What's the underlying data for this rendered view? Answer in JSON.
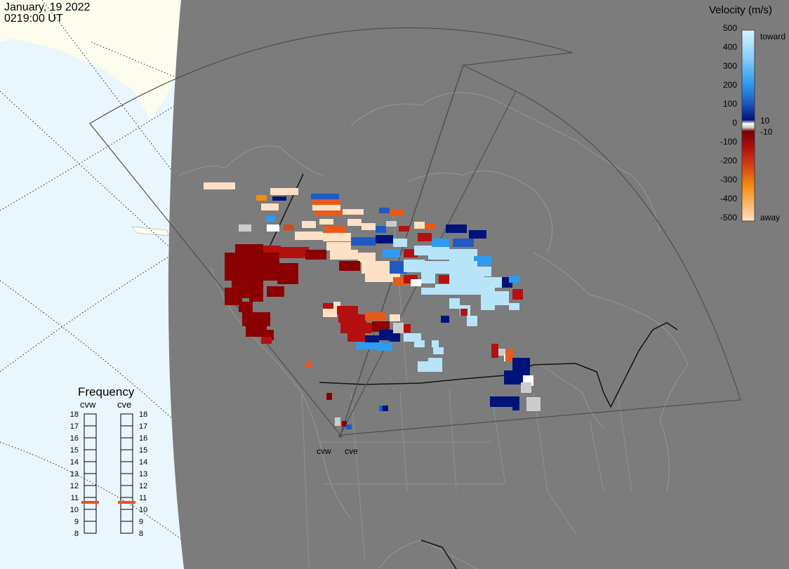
{
  "timestamp": {
    "date": "January, 19 2022",
    "time": "0219:00 UT"
  },
  "colors": {
    "ocean": "#eaf6fd",
    "land_unlit": "#fdfdee",
    "night_shade": "#7c7c7c",
    "fov_outline": "#505050",
    "coast": "#979797",
    "border": "#111111",
    "marker": "#e8541e"
  },
  "velocity_legend": {
    "title": "Velocity (m/s)",
    "ticks": [
      "500",
      "400",
      "300",
      "200",
      "100",
      "0",
      "-100",
      "-200",
      "-300",
      "-400",
      "-500"
    ],
    "side_labels": {
      "toward": "toward",
      "plus10": "10",
      "minus10": "-10",
      "away": "away"
    }
  },
  "frequency_panel": {
    "title": "Frequency",
    "radars": [
      {
        "name": "cvw",
        "freq_mhz": 11
      },
      {
        "name": "cve",
        "freq_mhz": 11
      }
    ],
    "scale": [
      "18",
      "17",
      "16",
      "15",
      "14",
      "13",
      "12",
      "11",
      "10",
      "9",
      "8"
    ]
  },
  "sites": [
    "cvw",
    "cve"
  ],
  "cells": [
    [
      290,
      260,
      45,
      10,
      "#fee0c4"
    ],
    [
      385,
      268,
      20,
      10,
      "#fee0c4"
    ],
    [
      405,
      268,
      20,
      10,
      "#fee0c4"
    ],
    [
      365,
      278,
      15,
      8,
      "#f78d10"
    ],
    [
      388,
      280,
      20,
      6,
      "#00137a"
    ],
    [
      372,
      290,
      25,
      10,
      "#fee0c4"
    ],
    [
      378,
      308,
      15,
      8,
      "#2e9bf0"
    ],
    [
      340,
      320,
      18,
      10,
      "#cccccc"
    ],
    [
      380,
      320,
      18,
      10,
      "#ffffff"
    ],
    [
      404,
      320,
      14,
      8,
      "#d84812"
    ],
    [
      443,
      276,
      40,
      8,
      "#1f5ac4"
    ],
    [
      445,
      284,
      40,
      8,
      "#e95a1a"
    ],
    [
      445,
      292,
      40,
      8,
      "#fee0c4"
    ],
    [
      448,
      300,
      40,
      8,
      "#e95a1a"
    ],
    [
      488,
      298,
      30,
      8,
      "#fee0c4"
    ],
    [
      430,
      315,
      20,
      10,
      "#fee0c4"
    ],
    [
      455,
      312,
      20,
      8,
      "#fee0c4"
    ],
    [
      462,
      322,
      30,
      10,
      "#e95a1a"
    ],
    [
      495,
      312,
      20,
      10,
      "#fee0c4"
    ],
    [
      515,
      318,
      20,
      10,
      "#fee0c4"
    ],
    [
      535,
      322,
      15,
      10,
      "#1f5ac4"
    ],
    [
      540,
      296,
      15,
      8,
      "#1f5ac4"
    ],
    [
      555,
      298,
      20,
      10,
      "#e95a1a"
    ],
    [
      550,
      315,
      15,
      8,
      "#cccccc"
    ],
    [
      568,
      322,
      15,
      8,
      "#b41010"
    ],
    [
      420,
      330,
      40,
      12,
      "#fee0c4"
    ],
    [
      460,
      332,
      40,
      12,
      "#fee0c4"
    ],
    [
      465,
      345,
      35,
      12,
      "#fee0c4"
    ],
    [
      500,
      338,
      35,
      12,
      "#1f5ac4"
    ],
    [
      535,
      335,
      25,
      12,
      "#00137a"
    ],
    [
      560,
      340,
      20,
      12,
      "#b8e4fa"
    ],
    [
      545,
      355,
      25,
      12,
      "#2e9bf0"
    ],
    [
      575,
      355,
      20,
      12,
      "#b41010"
    ],
    [
      335,
      348,
      40,
      12,
      "#8b0000"
    ],
    [
      375,
      350,
      25,
      12,
      "#b41010"
    ],
    [
      390,
      352,
      50,
      16,
      "#b41010"
    ],
    [
      435,
      356,
      30,
      14,
      "#8b0000"
    ],
    [
      470,
      356,
      40,
      14,
      "#fee0c4"
    ],
    [
      510,
      360,
      25,
      14,
      "#fee0c4"
    ],
    [
      483,
      372,
      30,
      14,
      "#8b0000"
    ],
    [
      515,
      372,
      40,
      18,
      "#fee0c4"
    ],
    [
      555,
      372,
      25,
      18,
      "#1f5ac4"
    ],
    [
      590,
      316,
      15,
      10,
      "#fee0c4"
    ],
    [
      605,
      318,
      15,
      10,
      "#e95a1a"
    ],
    [
      635,
      320,
      30,
      12,
      "#00137a"
    ],
    [
      668,
      328,
      25,
      12,
      "#00137a"
    ],
    [
      595,
      332,
      20,
      12,
      "#b41010"
    ],
    [
      615,
      340,
      25,
      12,
      "#2e9bf0"
    ],
    [
      645,
      340,
      30,
      12,
      "#1f5ac4"
    ],
    [
      590,
      350,
      25,
      14,
      "#b8e4fa"
    ],
    [
      610,
      352,
      30,
      18,
      "#b8e4fa"
    ],
    [
      640,
      355,
      40,
      18,
      "#b8e4fa"
    ],
    [
      675,
      365,
      25,
      14,
      "#2e9bf0"
    ],
    [
      575,
      370,
      30,
      18,
      "#b8e4fa"
    ],
    [
      600,
      372,
      40,
      18,
      "#b8e4fa"
    ],
    [
      640,
      372,
      40,
      20,
      "#b8e4fa"
    ],
    [
      680,
      380,
      20,
      14,
      "#b8e4fa"
    ],
    [
      520,
      390,
      30,
      12,
      "#fee0c4"
    ],
    [
      545,
      390,
      25,
      12,
      "#fee0c4"
    ],
    [
      560,
      395,
      20,
      12,
      "#e95a1a"
    ],
    [
      575,
      392,
      20,
      12,
      "#b41010"
    ],
    [
      600,
      390,
      20,
      14,
      "#b8e4fa"
    ],
    [
      585,
      398,
      15,
      10,
      "#ffffff"
    ],
    [
      625,
      392,
      20,
      12,
      "#b41010"
    ],
    [
      640,
      392,
      25,
      15,
      "#b8e4fa"
    ],
    [
      665,
      392,
      25,
      15,
      "#b8e4fa"
    ],
    [
      690,
      395,
      25,
      15,
      "#b8e4fa"
    ],
    [
      715,
      395,
      15,
      15,
      "#00137a"
    ],
    [
      725,
      393,
      15,
      10,
      "#2e9bf0"
    ],
    [
      620,
      405,
      35,
      15,
      "#b8e4fa"
    ],
    [
      655,
      405,
      25,
      15,
      "#b8e4fa"
    ],
    [
      680,
      405,
      25,
      15,
      "#b8e4fa"
    ],
    [
      730,
      412,
      15,
      15,
      "#b41010"
    ],
    [
      600,
      410,
      20,
      10,
      "#b8e4fa"
    ],
    [
      685,
      420,
      20,
      22,
      "#b8e4fa"
    ],
    [
      705,
      415,
      20,
      20,
      "#b8e4fa"
    ],
    [
      725,
      432,
      15,
      10,
      "#b8e4fa"
    ],
    [
      640,
      425,
      15,
      15,
      "#b8e4fa"
    ],
    [
      655,
      435,
      15,
      15,
      "#b8e4fa"
    ],
    [
      665,
      450,
      15,
      15,
      "#b8e4fa"
    ],
    [
      656,
      440,
      10,
      10,
      "#b41010"
    ],
    [
      628,
      450,
      12,
      10,
      "#00137a"
    ],
    [
      320,
      360,
      40,
      40,
      "#8b0000"
    ],
    [
      358,
      360,
      40,
      40,
      "#8b0000"
    ],
    [
      395,
      375,
      30,
      30,
      "#8b0000"
    ],
    [
      330,
      395,
      30,
      30,
      "#8b0000"
    ],
    [
      355,
      400,
      20,
      30,
      "#8b0000"
    ],
    [
      380,
      408,
      25,
      15,
      "#8b0000"
    ],
    [
      320,
      410,
      25,
      25,
      "#8b0000"
    ],
    [
      340,
      430,
      20,
      15,
      "#8b0000"
    ],
    [
      345,
      445,
      40,
      20,
      "#8b0000"
    ],
    [
      350,
      460,
      30,
      20,
      "#8b0000"
    ],
    [
      375,
      470,
      15,
      15,
      "#8b0000"
    ],
    [
      372,
      480,
      15,
      10,
      "#b41010"
    ],
    [
      460,
      432,
      20,
      10,
      "#b41010"
    ],
    [
      475,
      430,
      10,
      10,
      "#fee0c4"
    ],
    [
      480,
      436,
      30,
      12,
      "#b41010"
    ],
    [
      460,
      440,
      20,
      12,
      "#fee0c4"
    ],
    [
      482,
      448,
      40,
      12,
      "#b41010"
    ],
    [
      520,
      445,
      30,
      12,
      "#e95a1a"
    ],
    [
      485,
      460,
      45,
      15,
      "#b41010"
    ],
    [
      530,
      458,
      25,
      15,
      "#8b0000"
    ],
    [
      555,
      448,
      15,
      10,
      "#fee0c4"
    ],
    [
      560,
      460,
      15,
      15,
      "#cccccc"
    ],
    [
      540,
      470,
      20,
      15,
      "#00137a"
    ],
    [
      555,
      475,
      15,
      12,
      "#00137a"
    ],
    [
      575,
      462,
      10,
      12,
      "#b41010"
    ],
    [
      495,
      475,
      25,
      12,
      "#b41010"
    ],
    [
      520,
      478,
      20,
      12,
      "#00137a"
    ],
    [
      507,
      488,
      30,
      10,
      "#2e9bf0"
    ],
    [
      537,
      488,
      22,
      12,
      "#2e9bf0"
    ],
    [
      575,
      475,
      25,
      12,
      "#b8e4fa"
    ],
    [
      590,
      485,
      15,
      10,
      "#b8e4fa"
    ],
    [
      615,
      485,
      10,
      10,
      "#b8e4fa"
    ],
    [
      617,
      495,
      15,
      10,
      "#b8e4fa"
    ],
    [
      595,
      515,
      35,
      15,
      "#b8e4fa"
    ],
    [
      610,
      510,
      20,
      20,
      "#b8e4fa"
    ],
    [
      700,
      490,
      10,
      20,
      "#b41010"
    ],
    [
      710,
      497,
      10,
      10,
      "#cccccc"
    ],
    [
      718,
      505,
      10,
      10,
      "#ffffff"
    ],
    [
      720,
      497,
      12,
      18,
      "#e95a1a"
    ],
    [
      730,
      510,
      25,
      25,
      "#00137a"
    ],
    [
      718,
      528,
      30,
      20,
      "#00137a"
    ],
    [
      745,
      535,
      15,
      15,
      "#ffffff"
    ],
    [
      742,
      545,
      15,
      15,
      "#cccccc"
    ],
    [
      698,
      565,
      40,
      15,
      "#00137a"
    ],
    [
      730,
      565,
      10,
      20,
      "#00137a"
    ],
    [
      750,
      566,
      20,
      20,
      "#cccccc"
    ],
    [
      465,
      560,
      8,
      10,
      "#8b0000"
    ],
    [
      477,
      595,
      8,
      12,
      "#cccccc"
    ],
    [
      487,
      600,
      7,
      8,
      "#8b0000"
    ],
    [
      493,
      605,
      8,
      7,
      "#1f5ac4"
    ],
    [
      540,
      578,
      10,
      8,
      "#1f5ac4"
    ],
    [
      545,
      578,
      8,
      8,
      "#00137a"
    ],
    [
      436,
      516,
      8,
      8,
      "#e95a1a"
    ]
  ]
}
